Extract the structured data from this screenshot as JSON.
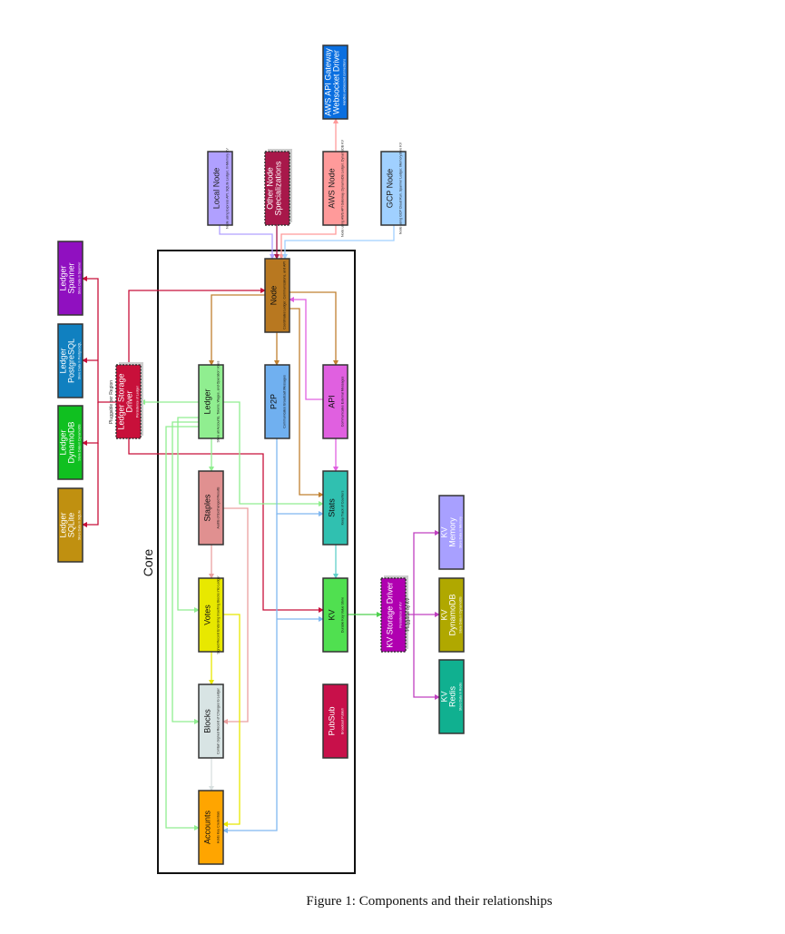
{
  "caption": "Figure 1: Components and their relationships",
  "core_label": "Core",
  "components": [
    {
      "id": "aws-gw",
      "title": [
        "AWS API Gateway",
        "Websocket Driver"
      ],
      "subtitle": "Handles websocket connections",
      "color": "#0a6fe0",
      "text_color": "#ffffff"
    },
    {
      "id": "local-node",
      "title": [
        "Local Node"
      ],
      "subtitle": "Node using Express API, SQLite Ledger, In-Memory KV",
      "color": "#b0a0ff",
      "text_color": "#222222"
    },
    {
      "id": "other-node",
      "title": [
        "Other Node",
        "Specializations"
      ],
      "subtitle": "",
      "color": "#a8184a",
      "text_color": "#ffffff",
      "dashed": true
    },
    {
      "id": "aws-node",
      "title": [
        "AWS Node"
      ],
      "subtitle": "Node using AWS API Gateway, DynamoDB Ledger, DynamoDB KV",
      "color": "#ff9a9a",
      "text_color": "#222222"
    },
    {
      "id": "gcp-node",
      "title": [
        "GCP Node"
      ],
      "subtitle": "Node using GCP Cloud Run, Spanner Ledger, Memorystore KV",
      "color": "#a0d0ff",
      "text_color": "#222222"
    },
    {
      "id": "node",
      "title": [
        "Node"
      ],
      "subtitle": "Coordinates Ledger, Communications, and API",
      "color": "#b87820",
      "text_color": "#111111"
    },
    {
      "id": "ledger",
      "title": [
        "Ledger"
      ],
      "subtitle": "Store all Accounts, Tokens, Wages, and Operation Votes",
      "color": "#90ee90",
      "text_color": "#111111"
    },
    {
      "id": "p2p",
      "title": [
        "P2P"
      ],
      "subtitle": "Communicates Broadcast Messages",
      "color": "#70b0f0",
      "text_color": "#111111"
    },
    {
      "id": "api",
      "title": [
        "API"
      ],
      "subtitle": "Communicates External Messages",
      "color": "#e060e0",
      "text_color": "#111111"
    },
    {
      "id": "ledger-driver",
      "title": [
        "Ledger Storage",
        "Driver"
      ],
      "subtitle": "Persistence of Ledger",
      "color": "#c8103a",
      "text_color": "#ffffff",
      "dashed": true
    },
    {
      "id": "ledger-spanner",
      "title": [
        "Ledger",
        "Spanner"
      ],
      "subtitle": "Store Data in Spanner",
      "color": "#9010c0",
      "text_color": "#ffffff"
    },
    {
      "id": "ledger-postgres",
      "title": [
        "Ledger",
        "PostgreSQL"
      ],
      "subtitle": "Store Data in PostgreSQL",
      "color": "#1080c0",
      "text_color": "#ffffff"
    },
    {
      "id": "ledger-dynamo",
      "title": [
        "Ledger",
        "DynamoDB"
      ],
      "subtitle": "Store Data in DynamoDB",
      "color": "#10c020",
      "text_color": "#ffffff"
    },
    {
      "id": "ledger-sqlite",
      "title": [
        "Ledger",
        "SQLite"
      ],
      "subtitle": "Store Data in SQLite",
      "color": "#c09010",
      "text_color": "#ffffff"
    },
    {
      "id": "staples",
      "title": [
        "Staples"
      ],
      "subtitle": "Audits of Exchanged Results",
      "color": "#e09090",
      "text_color": "#111111"
    },
    {
      "id": "stats",
      "title": [
        "Stats"
      ],
      "subtitle": "Keep Track of Counters",
      "color": "#30c0b0",
      "text_color": "#111111"
    },
    {
      "id": "votes",
      "title": [
        "Votes"
      ],
      "subtitle": "Signed Record Endorsing Inserting Blocks into Ledger",
      "color": "#e8e800",
      "text_color": "#111111"
    },
    {
      "id": "kv",
      "title": [
        "KV"
      ],
      "subtitle": "Durable Key Value Store",
      "color": "#50e050",
      "text_color": "#111111"
    },
    {
      "id": "blocks",
      "title": [
        "Blocks"
      ],
      "subtitle": "Contain Signed Record of Changes to Ledger",
      "color": "#d8e4e4",
      "text_color": "#111111"
    },
    {
      "id": "pubsub",
      "title": [
        "PubSub"
      ],
      "subtitle": "Broadcast Publish",
      "color": "#c8104a",
      "text_color": "#ffffff"
    },
    {
      "id": "accounts",
      "title": [
        "Accounts"
      ],
      "subtitle": "Holds Key Credentials",
      "color": "#ffa500",
      "text_color": "#111111"
    },
    {
      "id": "kv-driver",
      "title": [
        "KV Storage Driver"
      ],
      "subtitle": "Persistence of KV",
      "color": "#b000b0",
      "text_color": "#ffffff",
      "dashed": true
    },
    {
      "id": "kv-memory",
      "title": [
        "KV",
        "Memory"
      ],
      "subtitle": "Store Data in Memory",
      "color": "#a8a0ff",
      "text_color": "#ffffff"
    },
    {
      "id": "kv-dynamo",
      "title": [
        "KV",
        "DynamoDB"
      ],
      "subtitle": "Store Data in DynamoDB",
      "color": "#b0a800",
      "text_color": "#ffffff"
    },
    {
      "id": "kv-redis",
      "title": [
        "KV",
        "Redis"
      ],
      "subtitle": "Store Data in Redis",
      "color": "#10b090",
      "text_color": "#ffffff"
    }
  ],
  "annotations": {
    "ledger_driver_note": "Pluggable per Region",
    "kv_driver_note": "Pluggable by KV"
  },
  "edge_colors": {
    "local": "#b0a0ff",
    "other": "#a8184a",
    "aws": "#ff9a9a",
    "gcp": "#a0d0ff",
    "node": "#c08030",
    "api": "#e060e0",
    "ledger_driver": "#c8103a",
    "ledger": "#90ee90",
    "p2p": "#80b8f0",
    "staples": "#eaa0a0",
    "votes": "#e8e800",
    "blocks": "#d8e0e0",
    "stats": "#60d0c8",
    "kv": "#50d050",
    "kv_driver": "#c040c0"
  }
}
